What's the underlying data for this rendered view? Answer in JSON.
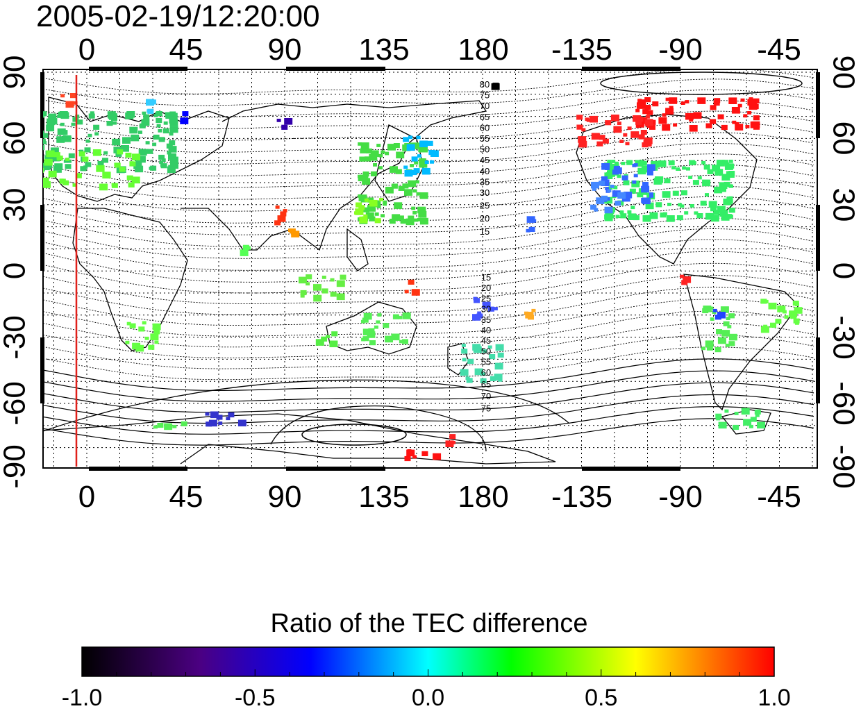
{
  "title": "2005-02-19/12:20:00",
  "map": {
    "lon_ticks_top": [
      "0",
      "45",
      "90",
      "135",
      "180",
      "-135",
      "-90",
      "-45"
    ],
    "lon_ticks_bottom": [
      "0",
      "45",
      "90",
      "135",
      "180",
      "-135",
      "-90",
      "-45"
    ],
    "lat_ticks_left": [
      "90",
      "60",
      "30",
      "0",
      "-30",
      "-60",
      "-90"
    ],
    "lat_ticks_right": [
      "90",
      "60",
      "30",
      "0",
      "-30",
      "-60",
      "-90"
    ],
    "contour_labels_north": [
      "80",
      "75",
      "70",
      "65",
      "60",
      "55",
      "50",
      "45",
      "40",
      "35",
      "30",
      "25",
      "20",
      "15"
    ],
    "contour_labels_south": [
      "15",
      "20",
      "25",
      "30",
      "35",
      "40",
      "45",
      "50",
      "55",
      "60",
      "65",
      "70",
      "75"
    ],
    "marker_line_color": "#e0201a"
  },
  "colorbar": {
    "title": "Ratio of the TEC difference",
    "tick_labels": [
      "-1.0",
      "-0.5",
      "0.0",
      "0.5",
      "1.0"
    ],
    "range": [
      -1.0,
      1.0
    ],
    "colors": [
      "#000000",
      "#4b0082",
      "#0000ff",
      "#00ffff",
      "#00ff00",
      "#ffff00",
      "#ff0000"
    ]
  }
}
